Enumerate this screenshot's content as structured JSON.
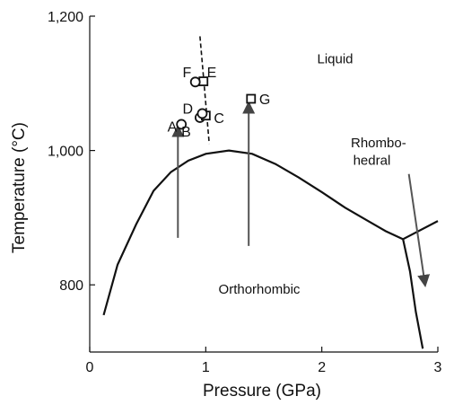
{
  "chart_data": {
    "type": "phase_diagram",
    "xlabel": "Pressure (GPa)",
    "ylabel": "Temperature (°C)",
    "xlim": [
      0,
      3
    ],
    "ylim": [
      700,
      1200
    ],
    "xticks": [
      {
        "value": 0,
        "label": "0"
      },
      {
        "value": 1,
        "label": "1"
      },
      {
        "value": 2,
        "label": "2"
      },
      {
        "value": 3,
        "label": "3"
      }
    ],
    "yticks": [
      {
        "value": 800,
        "label": "800"
      },
      {
        "value": 1000,
        "label": "1,000"
      },
      {
        "value": 1200,
        "label": "1,200"
      }
    ],
    "regions": [
      {
        "id": "liquid",
        "text": "Liquid",
        "x": 1.96,
        "y": 1130
      },
      {
        "id": "orthorhombic",
        "text": "Orthorhombic",
        "x": 1.11,
        "y": 787
      },
      {
        "id": "rhombo",
        "text": "Rhombo-",
        "x": 2.25,
        "y": 1005
      },
      {
        "id": "hedral",
        "text": "hedral",
        "x": 2.27,
        "y": 979
      }
    ],
    "boundaries": [
      {
        "name": "orthorhombic-liquid",
        "points": [
          [
            0.12,
            755
          ],
          [
            0.24,
            830
          ],
          [
            0.4,
            890
          ],
          [
            0.55,
            940
          ],
          [
            0.7,
            968
          ],
          [
            0.85,
            985
          ],
          [
            1.0,
            995
          ],
          [
            1.2,
            1000
          ],
          [
            1.4,
            995
          ],
          [
            1.6,
            980
          ],
          [
            1.8,
            960
          ],
          [
            2.0,
            938
          ],
          [
            2.2,
            915
          ],
          [
            2.4,
            895
          ],
          [
            2.55,
            880
          ],
          [
            2.7,
            868
          ]
        ]
      },
      {
        "name": "rhombohedral-liquid",
        "points": [
          [
            2.7,
            868
          ],
          [
            3.0,
            895
          ]
        ]
      },
      {
        "name": "orthorhombic-rhombohedral",
        "points": [
          [
            2.7,
            868
          ],
          [
            2.76,
            820
          ],
          [
            2.81,
            760
          ],
          [
            2.87,
            705
          ]
        ]
      }
    ],
    "dashed_line": {
      "points": [
        [
          0.95,
          1170
        ],
        [
          1.03,
          1010
        ]
      ]
    },
    "arrows": [
      {
        "from": [
          0.76,
          870
        ],
        "to": [
          0.76,
          1035
        ]
      },
      {
        "from": [
          1.37,
          858
        ],
        "to": [
          1.37,
          1070
        ]
      },
      {
        "from": [
          2.75,
          965
        ],
        "to": [
          2.89,
          800
        ]
      }
    ],
    "points": [
      {
        "label": "A",
        "x": 0.79,
        "y": 1039,
        "marker": "circle",
        "label_dx": -0.12,
        "label_dy": -3
      },
      {
        "label": "B",
        "x": 0.95,
        "y": 1049,
        "marker": "circle",
        "label_dx": -0.16,
        "label_dy": -20
      },
      {
        "label": "C",
        "x": 1.0,
        "y": 1052,
        "marker": "square",
        "label_dx": 0.07,
        "label_dy": -3
      },
      {
        "label": "D",
        "x": 0.97,
        "y": 1055,
        "marker": "circle",
        "label_dx": -0.17,
        "label_dy": 8
      },
      {
        "label": "E",
        "x": 0.98,
        "y": 1103,
        "marker": "square",
        "label_dx": 0.03,
        "label_dy": 14
      },
      {
        "label": "F",
        "x": 0.91,
        "y": 1102,
        "marker": "circle",
        "label_dx": -0.11,
        "label_dy": 15
      },
      {
        "label": "G",
        "x": 1.39,
        "y": 1077,
        "marker": "square",
        "label_dx": 0.07,
        "label_dy": 0
      }
    ]
  }
}
